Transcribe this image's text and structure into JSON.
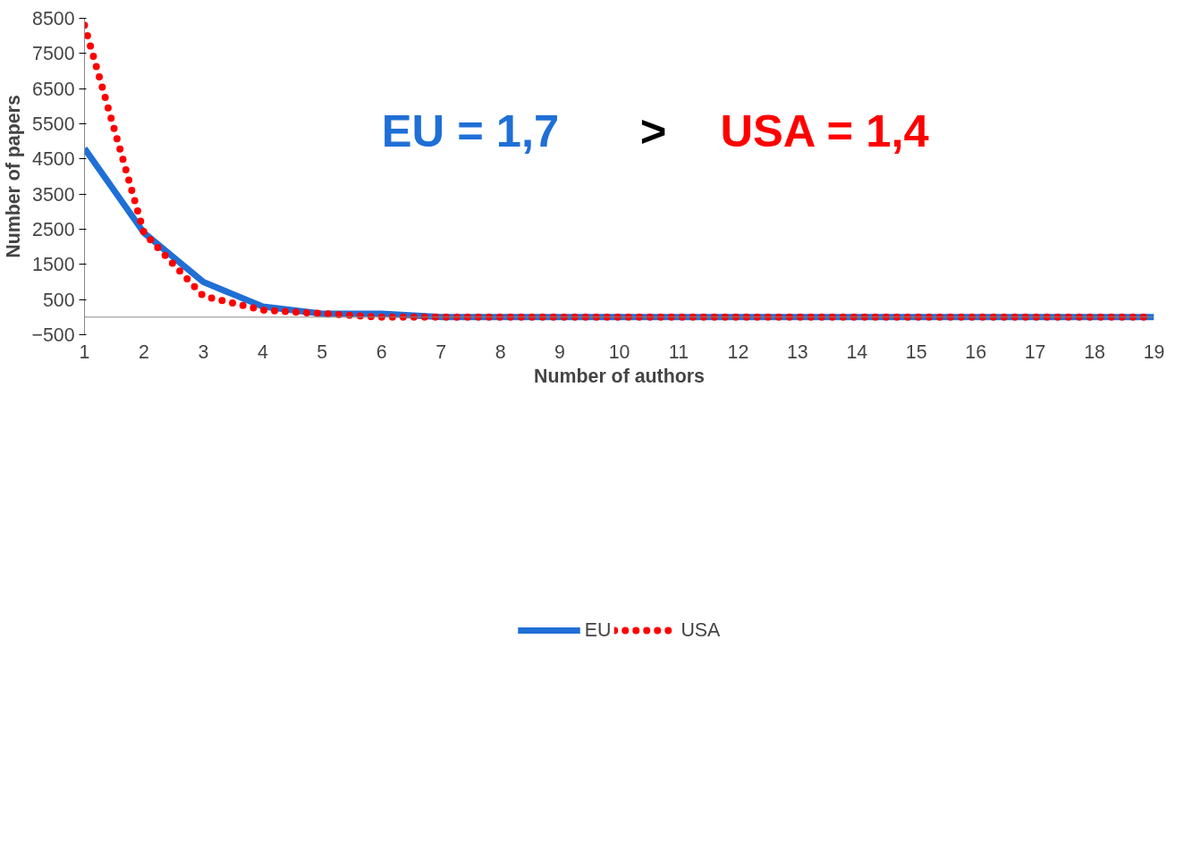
{
  "chart_data": {
    "type": "line",
    "xlabel": "Number of authors",
    "ylabel": "Number of papers",
    "x": [
      1,
      2,
      3,
      4,
      5,
      6,
      7,
      8,
      9,
      10,
      11,
      12,
      13,
      14,
      15,
      16,
      17,
      18,
      19
    ],
    "series": [
      {
        "name": "EU",
        "color": "#1f6fd6",
        "line_style": "solid",
        "values": [
          4800,
          2400,
          1000,
          300,
          100,
          100,
          0,
          0,
          0,
          0,
          0,
          0,
          0,
          0,
          0,
          0,
          0,
          0,
          0
        ]
      },
      {
        "name": "USA",
        "color": "#ff0000",
        "line_style": "dotted",
        "values": [
          8300,
          2400,
          600,
          200,
          100,
          0,
          0,
          0,
          0,
          0,
          0,
          0,
          0,
          0,
          0,
          0,
          0,
          0,
          0
        ]
      }
    ],
    "xlim": [
      1,
      19
    ],
    "xticks": [
      1,
      2,
      3,
      4,
      5,
      6,
      7,
      8,
      9,
      10,
      11,
      12,
      13,
      14,
      15,
      16,
      17,
      18,
      19
    ],
    "ylim": [
      -500,
      8500
    ],
    "yticks": [
      -500,
      500,
      1500,
      2500,
      3500,
      4500,
      5500,
      6500,
      7500,
      8500
    ],
    "annotations": [
      "EU = 1,7",
      ">",
      "USA = 1,4"
    ],
    "grid": false,
    "legend": "bottom",
    "marker": "none"
  }
}
